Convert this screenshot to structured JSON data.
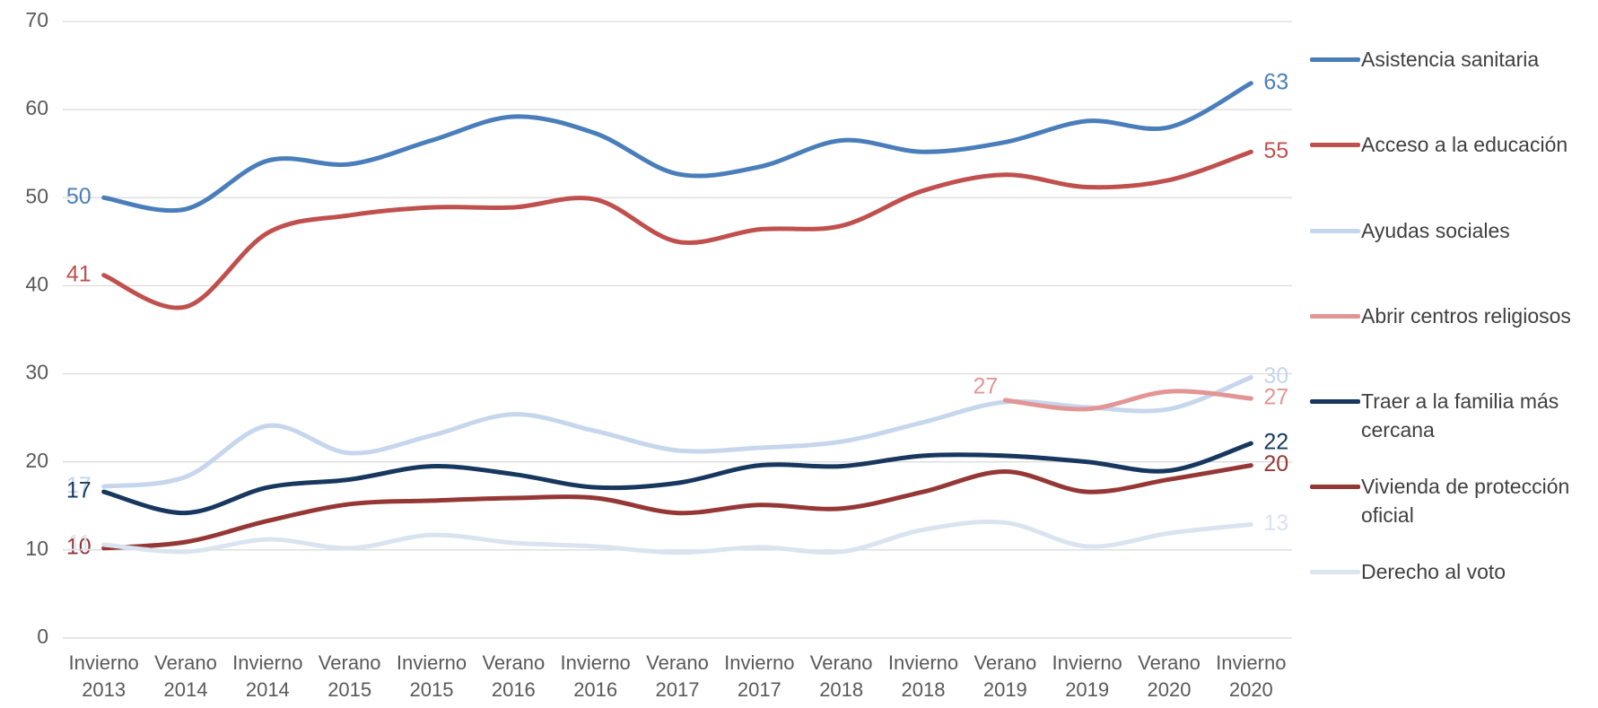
{
  "chart_data": {
    "type": "line",
    "categories": [
      "Invierno 2013",
      "Verano 2014",
      "Invierno 2014",
      "Verano 2015",
      "Invierno 2015",
      "Verano 2016",
      "Invierno 2016",
      "Verano 2017",
      "Invierno 2017",
      "Verano 2018",
      "Invierno 2018",
      "Verano 2019",
      "Invierno 2019",
      "Verano 2020",
      "Invierno 2020"
    ],
    "ylim": [
      0,
      70
    ],
    "yticks": [
      0,
      10,
      20,
      30,
      40,
      50,
      60,
      70
    ],
    "grid": true,
    "legend": "right",
    "series": [
      {
        "name": "Asistencia sanitaria",
        "color": "#4a7ebb",
        "values": [
          50,
          48.7,
          54.2,
          53.8,
          56.5,
          59.2,
          57.3,
          52.7,
          53.5,
          56.5,
          55.2,
          56.3,
          58.7,
          58,
          63
        ],
        "value_labels": [
          "50",
          null,
          null,
          null,
          null,
          null,
          null,
          null,
          null,
          null,
          null,
          null,
          null,
          null,
          "63"
        ]
      },
      {
        "name": "Acceso a la educación",
        "color": "#c0504d",
        "values": [
          41.2,
          37.6,
          46,
          48,
          48.9,
          48.9,
          49.8,
          45,
          46.4,
          46.8,
          50.8,
          52.6,
          51.2,
          52,
          55.2
        ],
        "value_labels": [
          "41",
          null,
          null,
          null,
          null,
          null,
          null,
          null,
          null,
          null,
          null,
          null,
          null,
          null,
          "55"
        ]
      },
      {
        "name": "Ayudas sociales",
        "color": "#c6d6ec",
        "values": [
          17.2,
          18.3,
          24.1,
          21,
          23,
          25.4,
          23.5,
          21.3,
          21.6,
          22.3,
          24.5,
          26.8,
          26.2,
          26,
          29.6
        ],
        "value_labels": [
          "17",
          null,
          null,
          null,
          null,
          null,
          null,
          null,
          null,
          null,
          null,
          null,
          null,
          null,
          "30"
        ]
      },
      {
        "name": "Abrir centros religiosos",
        "color": "#e39595",
        "values": [
          null,
          null,
          null,
          null,
          null,
          null,
          null,
          null,
          null,
          null,
          null,
          27,
          26,
          28,
          27.2
        ],
        "value_labels": [
          null,
          null,
          null,
          null,
          null,
          null,
          null,
          null,
          null,
          null,
          null,
          "27",
          null,
          null,
          "27"
        ]
      },
      {
        "name": "Traer a la familia más cercana",
        "color": "#17375e",
        "values": [
          16.6,
          14.2,
          17.1,
          18,
          19.5,
          18.6,
          17.1,
          17.6,
          19.6,
          19.5,
          20.7,
          20.7,
          20,
          19,
          22.1
        ],
        "value_labels": [
          "17",
          null,
          null,
          null,
          null,
          null,
          null,
          null,
          null,
          null,
          null,
          null,
          null,
          null,
          "22"
        ]
      },
      {
        "name": "Vivienda de protección oficial",
        "color": "#953735",
        "values": [
          10.2,
          10.9,
          13.3,
          15.2,
          15.6,
          15.9,
          15.9,
          14.2,
          15.1,
          14.7,
          16.6,
          18.9,
          16.6,
          18,
          19.6
        ],
        "value_labels": [
          "10",
          null,
          null,
          null,
          null,
          null,
          null,
          null,
          null,
          null,
          null,
          null,
          null,
          null,
          "20"
        ]
      },
      {
        "name": "Derecho al voto",
        "color": "#dae3f0",
        "values": [
          10.6,
          9.8,
          11.2,
          10.2,
          11.7,
          10.8,
          10.4,
          9.7,
          10.3,
          9.8,
          12.3,
          13.1,
          10.4,
          11.9,
          12.9
        ],
        "value_labels": [
          "11",
          null,
          null,
          null,
          null,
          null,
          null,
          null,
          null,
          null,
          null,
          null,
          null,
          null,
          "13"
        ]
      }
    ]
  }
}
